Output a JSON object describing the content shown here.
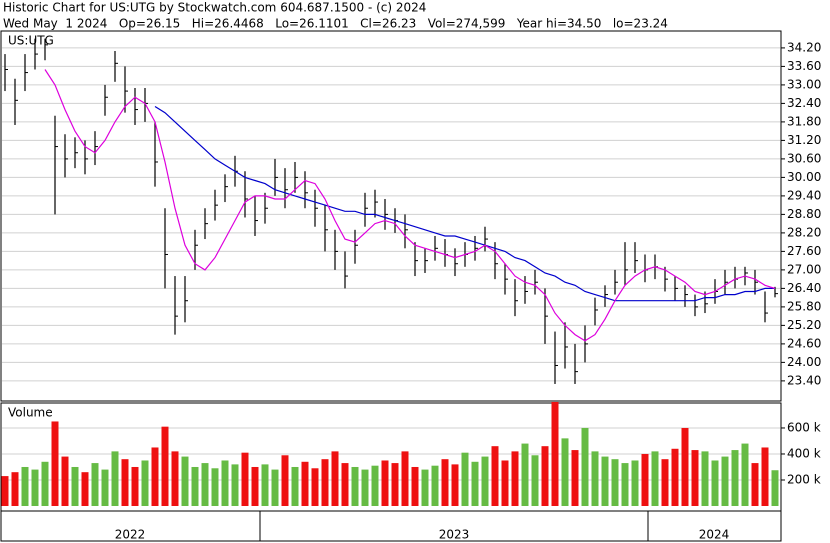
{
  "header": {
    "title": "Historic Chart for US:UTG by Stockwatch.com 604.687.1500 - (c) 2024",
    "quote": "Wed May  1 2024   Op=26.15   Hi=26.4468   Lo=26.1101   Cl=26.23   Vol=274,599   Year hi=34.50   lo=23.24"
  },
  "x_axis": {
    "labels": [
      "2022",
      "2023",
      "2024"
    ]
  },
  "chart_data": [
    {
      "type": "ohlc",
      "title": "US:UTG",
      "color": "#000000",
      "high": [
        34.0,
        33.2,
        34.0,
        34.5,
        34.5,
        32.0,
        31.4,
        31.3,
        31.2,
        31.5,
        33.0,
        34.1,
        33.6,
        32.9,
        32.9,
        31.8,
        29.0,
        26.8,
        26.8,
        28.3,
        29.0,
        29.6,
        30.1,
        30.7,
        30.2,
        29.4,
        29.5,
        30.6,
        30.3,
        30.5,
        30.2,
        29.6,
        29.1,
        28.3,
        27.6,
        28.3,
        29.5,
        29.6,
        29.3,
        29.0,
        28.8,
        27.9,
        27.7,
        28.1,
        28.0,
        27.7,
        27.9,
        28.1,
        28.4,
        27.9,
        27.2,
        26.7,
        26.8,
        27.0,
        26.4,
        25.0,
        25.3,
        24.6,
        25.2,
        26.1,
        26.5,
        27.0,
        27.9,
        27.9,
        27.5,
        27.5,
        27.1,
        26.8,
        26.5,
        26.2,
        26.3,
        26.7,
        27.0,
        27.1,
        27.1,
        27.0,
        26.3,
        26.45
      ],
      "low": [
        32.8,
        31.7,
        32.8,
        33.5,
        33.8,
        28.8,
        30.0,
        30.3,
        30.1,
        30.4,
        32.0,
        33.1,
        32.1,
        31.7,
        31.8,
        29.7,
        26.4,
        24.9,
        25.3,
        27.0,
        28.0,
        28.6,
        29.2,
        29.7,
        28.7,
        28.1,
        28.5,
        29.4,
        29.0,
        29.5,
        29.0,
        28.4,
        27.6,
        27.0,
        26.4,
        27.2,
        28.4,
        28.7,
        28.3,
        28.2,
        27.7,
        26.8,
        26.9,
        27.3,
        27.1,
        26.8,
        27.1,
        27.3,
        27.6,
        26.7,
        26.2,
        25.5,
        25.9,
        26.2,
        24.6,
        23.3,
        23.8,
        23.3,
        24.0,
        25.2,
        25.8,
        26.2,
        26.5,
        26.9,
        26.6,
        26.7,
        26.3,
        26.0,
        25.8,
        25.5,
        25.6,
        25.9,
        26.2,
        26.4,
        26.5,
        26.2,
        25.3,
        26.11
      ],
      "close": [
        33.5,
        32.5,
        33.4,
        34.0,
        34.3,
        31.0,
        30.6,
        30.8,
        30.6,
        31.0,
        32.6,
        33.7,
        32.8,
        32.2,
        32.4,
        30.5,
        27.5,
        25.5,
        26.0,
        27.8,
        28.5,
        29.1,
        29.7,
        30.2,
        29.3,
        28.6,
        29.0,
        30.0,
        29.6,
        30.0,
        29.5,
        29.0,
        28.3,
        27.6,
        26.8,
        27.8,
        29.0,
        29.2,
        28.8,
        28.6,
        28.3,
        27.3,
        27.3,
        27.7,
        27.5,
        27.2,
        27.5,
        27.7,
        28.0,
        27.2,
        26.7,
        26.0,
        26.3,
        26.6,
        25.5,
        23.9,
        24.5,
        23.7,
        24.6,
        25.7,
        26.2,
        26.6,
        27.0,
        27.3,
        27.0,
        27.1,
        26.7,
        26.4,
        26.2,
        25.8,
        25.9,
        26.3,
        26.6,
        26.7,
        26.9,
        26.6,
        25.6,
        26.23
      ],
      "overlays": [
        {
          "color": "#0000cc",
          "values": [
            null,
            null,
            null,
            null,
            null,
            null,
            null,
            null,
            null,
            null,
            null,
            null,
            null,
            null,
            null,
            32.3,
            32.1,
            31.8,
            31.5,
            31.2,
            30.9,
            30.6,
            30.4,
            30.2,
            30.0,
            29.9,
            29.8,
            29.6,
            29.5,
            29.4,
            29.3,
            29.2,
            29.1,
            29.0,
            28.9,
            28.9,
            28.8,
            28.8,
            28.7,
            28.6,
            28.5,
            28.4,
            28.3,
            28.2,
            28.1,
            28.1,
            28.0,
            27.9,
            27.8,
            27.7,
            27.6,
            27.4,
            27.3,
            27.1,
            26.9,
            26.8,
            26.6,
            26.5,
            26.3,
            26.2,
            26.1,
            26.0,
            26.0,
            26.0,
            26.0,
            26.0,
            26.0,
            26.0,
            26.0,
            26.0,
            26.1,
            26.1,
            26.2,
            26.2,
            26.3,
            26.3,
            26.4,
            26.4
          ]
        },
        {
          "color": "#dd00dd",
          "values": [
            null,
            null,
            null,
            null,
            33.5,
            33.0,
            32.2,
            31.5,
            31.0,
            30.8,
            31.2,
            31.8,
            32.3,
            32.6,
            32.4,
            31.8,
            30.5,
            29.0,
            27.8,
            27.2,
            27.0,
            27.4,
            28.0,
            28.6,
            29.2,
            29.4,
            29.4,
            29.3,
            29.3,
            29.6,
            29.9,
            29.8,
            29.3,
            28.6,
            28.0,
            27.9,
            28.2,
            28.5,
            28.6,
            28.5,
            28.1,
            27.8,
            27.7,
            27.6,
            27.5,
            27.4,
            27.5,
            27.6,
            27.8,
            27.6,
            27.2,
            26.8,
            26.6,
            26.5,
            26.2,
            25.6,
            25.2,
            24.9,
            24.7,
            24.9,
            25.4,
            26.0,
            26.5,
            26.8,
            27.0,
            27.1,
            27.0,
            26.8,
            26.6,
            26.3,
            26.2,
            26.3,
            26.5,
            26.7,
            26.8,
            26.7,
            26.5,
            26.4
          ]
        }
      ],
      "ylim": [
        22.78,
        35.17
      ],
      "yticks": [
        {
          "value": 23.4,
          "label": "23.40"
        },
        {
          "value": 24.0,
          "label": "24.00"
        },
        {
          "value": 24.6,
          "label": "24.60"
        },
        {
          "value": 25.2,
          "label": "25.20"
        },
        {
          "value": 25.8,
          "label": "25.80"
        },
        {
          "value": 26.4,
          "label": "26.40"
        },
        {
          "value": 27.0,
          "label": "27.00"
        },
        {
          "value": 27.6,
          "label": "27.60"
        },
        {
          "value": 28.2,
          "label": "28.20"
        },
        {
          "value": 28.8,
          "label": "28.80"
        },
        {
          "value": 29.4,
          "label": "29.40"
        },
        {
          "value": 30.0,
          "label": "30.00"
        },
        {
          "value": 30.6,
          "label": "30.60"
        },
        {
          "value": 31.2,
          "label": "31.20"
        },
        {
          "value": 31.8,
          "label": "31.80"
        },
        {
          "value": 32.4,
          "label": "32.40"
        },
        {
          "value": 33.0,
          "label": "33.00"
        },
        {
          "value": 33.6,
          "label": "33.60"
        },
        {
          "value": 34.2,
          "label": "34.20"
        }
      ],
      "grid": true
    },
    {
      "type": "bar",
      "title": "Volume",
      "up_color": "#66bb44",
      "down_color": "#ee1111",
      "values": [
        230,
        260,
        300,
        280,
        340,
        650,
        380,
        300,
        260,
        330,
        280,
        420,
        360,
        300,
        350,
        450,
        610,
        420,
        380,
        300,
        330,
        290,
        350,
        320,
        410,
        300,
        320,
        280,
        390,
        300,
        340,
        290,
        360,
        420,
        330,
        300,
        280,
        310,
        350,
        330,
        420,
        300,
        280,
        310,
        360,
        320,
        410,
        340,
        380,
        460,
        350,
        420,
        480,
        390,
        460,
        800,
        520,
        430,
        600,
        420,
        380,
        360,
        330,
        350,
        400,
        420,
        360,
        440,
        600,
        430,
        420,
        350,
        380,
        430,
        480,
        330,
        450,
        275
      ],
      "ylim": [
        0,
        792
      ],
      "yticks": [
        {
          "value": 200,
          "label": "200 k"
        },
        {
          "value": 400,
          "label": "400 k"
        },
        {
          "value": 600,
          "label": "600 k"
        }
      ],
      "grid": true
    }
  ]
}
